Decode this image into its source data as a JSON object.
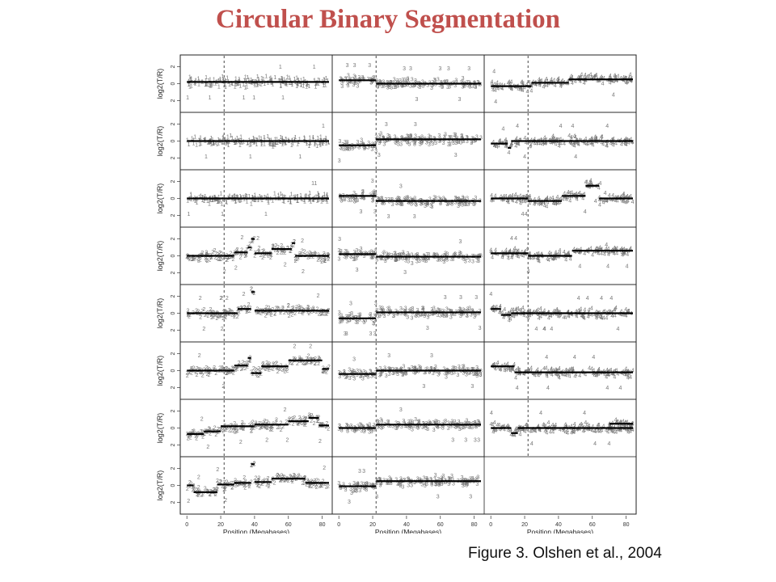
{
  "slide": {
    "title": "Circular Binary Segmentation",
    "caption": "Figure 3. Olshen et al., 2004"
  },
  "colors": {
    "title": "#c0504d",
    "points": "#777777",
    "segments": "#000000"
  },
  "chart_data": {
    "type": "scatter",
    "layout": "panel grid of 8 rows by 3 columns; last row third column empty",
    "ylabel": "log2(T/R)",
    "xlabel": "Position (Megabases)",
    "xlim": [
      -2,
      84
    ],
    "ylim": [
      -3,
      3
    ],
    "x_ticks": [
      0,
      20,
      40,
      60,
      80
    ],
    "y_ticks": [
      -2,
      0,
      2
    ],
    "y_tick_labels": [
      "2",
      "0",
      "2"
    ],
    "vertical_marker_x": 22,
    "panels": [
      {
        "row": 0,
        "col": 0,
        "label": "1",
        "segments": [
          [
            0,
            84,
            0.2
          ]
        ]
      },
      {
        "row": 0,
        "col": 1,
        "label": "3",
        "segments": [
          [
            0,
            22,
            0.4
          ],
          [
            22,
            84,
            0
          ]
        ]
      },
      {
        "row": 0,
        "col": 2,
        "label": "4",
        "segments": [
          [
            0,
            24,
            -0.3
          ],
          [
            24,
            46,
            0.1
          ],
          [
            46,
            84,
            0.5
          ]
        ]
      },
      {
        "row": 1,
        "col": 0,
        "label": "1",
        "segments": [
          [
            0,
            84,
            0
          ]
        ]
      },
      {
        "row": 1,
        "col": 1,
        "label": "3",
        "segments": [
          [
            0,
            22,
            -0.5
          ],
          [
            22,
            84,
            0.2
          ]
        ]
      },
      {
        "row": 1,
        "col": 2,
        "label": "4",
        "segments": [
          [
            0,
            10,
            -0.3
          ],
          [
            10,
            12,
            -0.8
          ],
          [
            12,
            84,
            0
          ]
        ]
      },
      {
        "row": 2,
        "col": 0,
        "label": "1",
        "segments": [
          [
            0,
            84,
            0
          ]
        ]
      },
      {
        "row": 2,
        "col": 1,
        "label": "3",
        "segments": [
          [
            0,
            22,
            0.3
          ],
          [
            22,
            84,
            -0.3
          ]
        ]
      },
      {
        "row": 2,
        "col": 2,
        "label": "4",
        "segments": [
          [
            0,
            22,
            0
          ],
          [
            22,
            42,
            -0.3
          ],
          [
            42,
            56,
            0.3
          ],
          [
            56,
            64,
            1.5
          ],
          [
            64,
            84,
            0
          ]
        ]
      },
      {
        "row": 3,
        "col": 0,
        "label": "2",
        "segments": [
          [
            0,
            28,
            0
          ],
          [
            28,
            36,
            0.4
          ],
          [
            36,
            38,
            1
          ],
          [
            38,
            40,
            2
          ],
          [
            40,
            50,
            0.3
          ],
          [
            50,
            62,
            0.8
          ],
          [
            62,
            64,
            1.5
          ],
          [
            64,
            84,
            0
          ]
        ]
      },
      {
        "row": 3,
        "col": 1,
        "label": "3",
        "segments": [
          [
            0,
            22,
            0.2
          ],
          [
            22,
            84,
            -0.1
          ]
        ]
      },
      {
        "row": 3,
        "col": 2,
        "label": "4",
        "segments": [
          [
            0,
            22,
            0.3
          ],
          [
            22,
            48,
            0
          ],
          [
            48,
            84,
            0.6
          ]
        ]
      },
      {
        "row": 4,
        "col": 0,
        "label": "2",
        "segments": [
          [
            0,
            30,
            0
          ],
          [
            30,
            38,
            0.5
          ],
          [
            38,
            40,
            2.5
          ],
          [
            40,
            84,
            0.3
          ]
        ]
      },
      {
        "row": 4,
        "col": 1,
        "label": "3",
        "segments": [
          [
            0,
            22,
            -0.6
          ],
          [
            22,
            84,
            0.1
          ]
        ]
      },
      {
        "row": 4,
        "col": 2,
        "label": "4",
        "segments": [
          [
            0,
            6,
            0.5
          ],
          [
            6,
            12,
            -0.2
          ],
          [
            12,
            84,
            0
          ]
        ]
      },
      {
        "row": 5,
        "col": 0,
        "label": "2",
        "segments": [
          [
            0,
            28,
            0
          ],
          [
            28,
            36,
            0.6
          ],
          [
            36,
            38,
            1.5
          ],
          [
            38,
            44,
            -0.3
          ],
          [
            44,
            60,
            0.5
          ],
          [
            60,
            80,
            1.2
          ],
          [
            80,
            84,
            0.2
          ]
        ]
      },
      {
        "row": 5,
        "col": 1,
        "label": "3",
        "segments": [
          [
            0,
            22,
            -0.4
          ],
          [
            22,
            84,
            0
          ]
        ]
      },
      {
        "row": 5,
        "col": 2,
        "label": "4",
        "segments": [
          [
            0,
            14,
            0.5
          ],
          [
            14,
            84,
            -0.2
          ]
        ]
      },
      {
        "row": 6,
        "col": 0,
        "label": "2",
        "segments": [
          [
            0,
            10,
            -0.7
          ],
          [
            10,
            20,
            -0.4
          ],
          [
            20,
            40,
            0.2
          ],
          [
            40,
            60,
            0.4
          ],
          [
            60,
            72,
            0.8
          ],
          [
            72,
            78,
            1.2
          ],
          [
            78,
            84,
            0.3
          ]
        ]
      },
      {
        "row": 6,
        "col": 1,
        "label": "3",
        "segments": [
          [
            0,
            22,
            0
          ],
          [
            22,
            84,
            0.4
          ]
        ]
      },
      {
        "row": 6,
        "col": 2,
        "label": "4",
        "segments": [
          [
            0,
            12,
            0
          ],
          [
            12,
            16,
            -0.6
          ],
          [
            16,
            84,
            0
          ],
          [
            70,
            84,
            0.5
          ]
        ]
      },
      {
        "row": 7,
        "col": 0,
        "label": "2",
        "segments": [
          [
            0,
            4,
            0
          ],
          [
            4,
            18,
            -0.8
          ],
          [
            18,
            28,
            0.1
          ],
          [
            28,
            38,
            0.3
          ],
          [
            38,
            40,
            2.5
          ],
          [
            40,
            50,
            0.4
          ],
          [
            50,
            70,
            0.8
          ],
          [
            70,
            84,
            0.3
          ]
        ]
      },
      {
        "row": 7,
        "col": 1,
        "label": "3",
        "segments": [
          [
            0,
            22,
            -0.1
          ],
          [
            22,
            84,
            0.5
          ]
        ]
      }
    ]
  }
}
